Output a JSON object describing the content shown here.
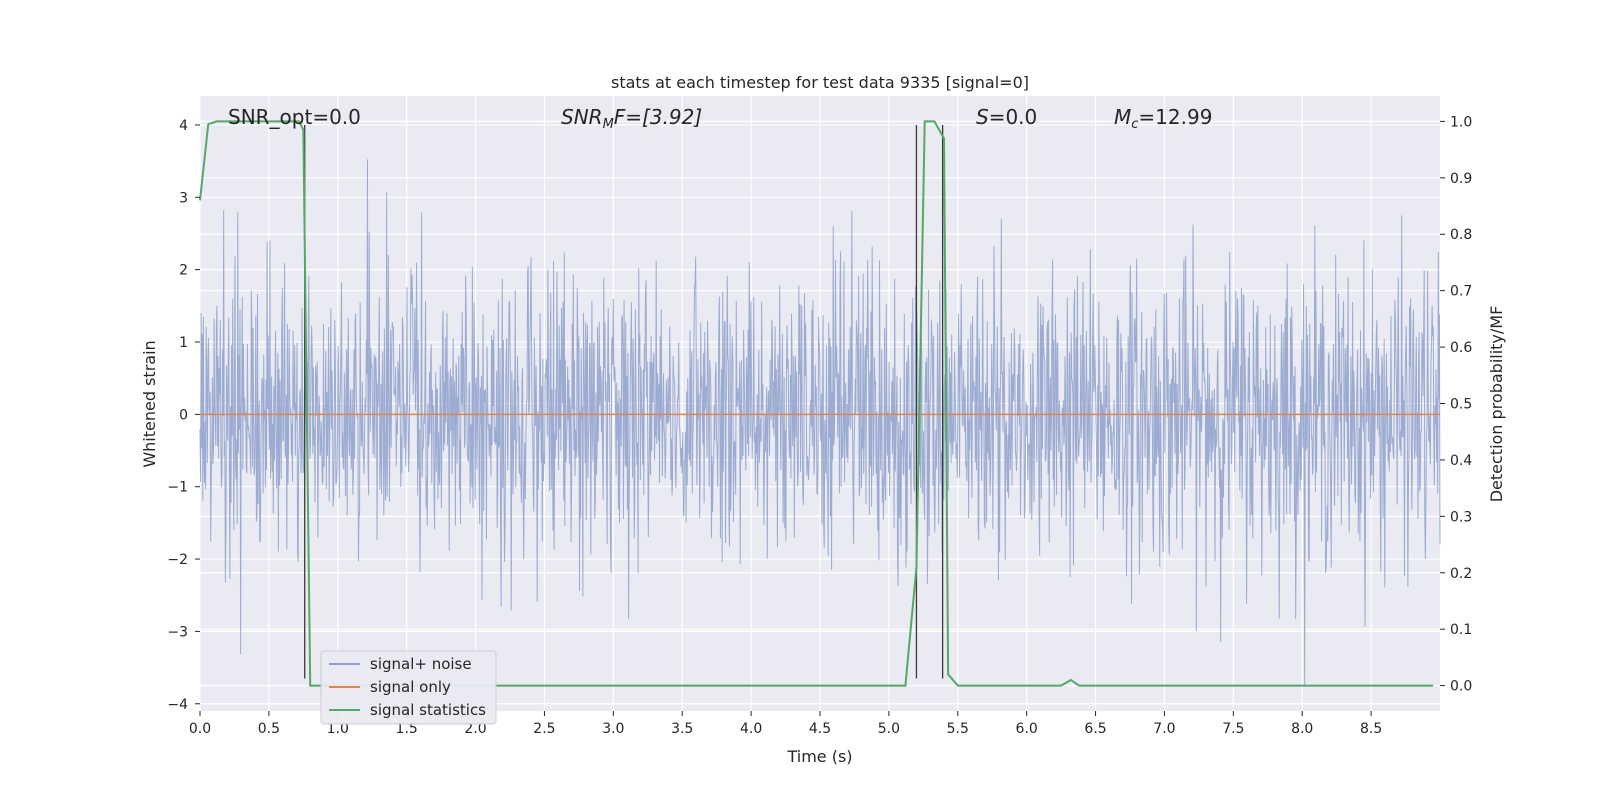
{
  "chart_data": {
    "type": "line",
    "title": "stats at each timestep for test data 9335 [signal=0]",
    "xlabel": "Time (s)",
    "ylabel": "Whitened strain",
    "y2label": "Detection probability/MF",
    "xlim": [
      0.0,
      9.0
    ],
    "ylim": [
      -4.1,
      4.4
    ],
    "y2lim": [
      -0.045,
      1.045
    ],
    "xticks": [
      0.0,
      0.5,
      1.0,
      1.5,
      2.0,
      2.5,
      3.0,
      3.5,
      4.0,
      4.5,
      5.0,
      5.5,
      6.0,
      6.5,
      7.0,
      7.5,
      8.0,
      8.5
    ],
    "xtick_labels": [
      "0.0",
      "0.5",
      "1.0",
      "1.5",
      "2.0",
      "2.5",
      "3.0",
      "3.5",
      "4.0",
      "4.5",
      "5.0",
      "5.5",
      "6.0",
      "6.5",
      "7.0",
      "7.5",
      "8.0",
      "8.5"
    ],
    "yticks": [
      -4,
      -3,
      -2,
      -1,
      0,
      1,
      2,
      3,
      4
    ],
    "ytick_labels": [
      "−4",
      "−3",
      "−2",
      "−1",
      "0",
      "1",
      "2",
      "3",
      "4"
    ],
    "y2ticks": [
      0.0,
      0.1,
      0.2,
      0.3,
      0.4,
      0.5,
      0.6,
      0.7,
      0.8,
      0.9,
      1.0
    ],
    "y2tick_labels": [
      "0.0",
      "0.1",
      "0.2",
      "0.3",
      "0.4",
      "0.5",
      "0.6",
      "0.7",
      "0.8",
      "0.9",
      "1.0"
    ],
    "grid": true,
    "legend": {
      "placement": "lower-left",
      "entries": [
        {
          "label": "signal+ noise",
          "color": "#8da0cb"
        },
        {
          "label": "signal only",
          "color": "#dd8452"
        },
        {
          "label": "signal statistics",
          "color": "#55a868"
        }
      ]
    },
    "annotations": [
      {
        "text": "SNR_opt=0.0",
        "x": 0.2
      },
      {
        "text": "SNRMF=[3.92]",
        "x": 2.6
      },
      {
        "text": "S=0.0",
        "x": 5.6
      },
      {
        "text": "Mc=12.99",
        "x": 6.6
      }
    ],
    "series": [
      {
        "name": "signal+ noise",
        "color": "#8da0cb",
        "noise_sigma": 1.0,
        "n_samples": 2200
      },
      {
        "name": "signal only",
        "color": "#dd8452",
        "value": 0.0
      },
      {
        "name": "signal statistics",
        "color": "#55a868",
        "axis": "right",
        "x": [
          0.0,
          0.06,
          0.12,
          0.2,
          0.3,
          0.4,
          0.5,
          0.6,
          0.66,
          0.72,
          0.75,
          0.8,
          0.9,
          1.0,
          2.0,
          3.0,
          4.0,
          5.0,
          5.12,
          5.2,
          5.26,
          5.33,
          5.4,
          5.43,
          5.5,
          6.0,
          6.25,
          6.32,
          6.38,
          7.0,
          8.0,
          8.95
        ],
        "y": [
          0.86,
          0.995,
          1.0,
          1.0,
          1.0,
          1.0,
          1.0,
          1.0,
          1.0,
          1.0,
          0.985,
          0.0,
          0.0,
          0.0,
          0.0,
          0.0,
          0.0,
          0.0,
          0.0,
          0.21,
          1.0,
          1.0,
          0.97,
          0.02,
          0.0,
          0.0,
          0.0,
          0.01,
          0.0,
          0.0,
          0.0,
          0.0
        ]
      }
    ],
    "vlines": [
      {
        "x": 0.76,
        "ymin": -3.65,
        "ymax": 4.0
      },
      {
        "x": 5.2,
        "ymin": -3.65,
        "ymax": 4.0
      },
      {
        "x": 5.39,
        "ymin": -3.65,
        "ymax": 4.0
      }
    ]
  }
}
